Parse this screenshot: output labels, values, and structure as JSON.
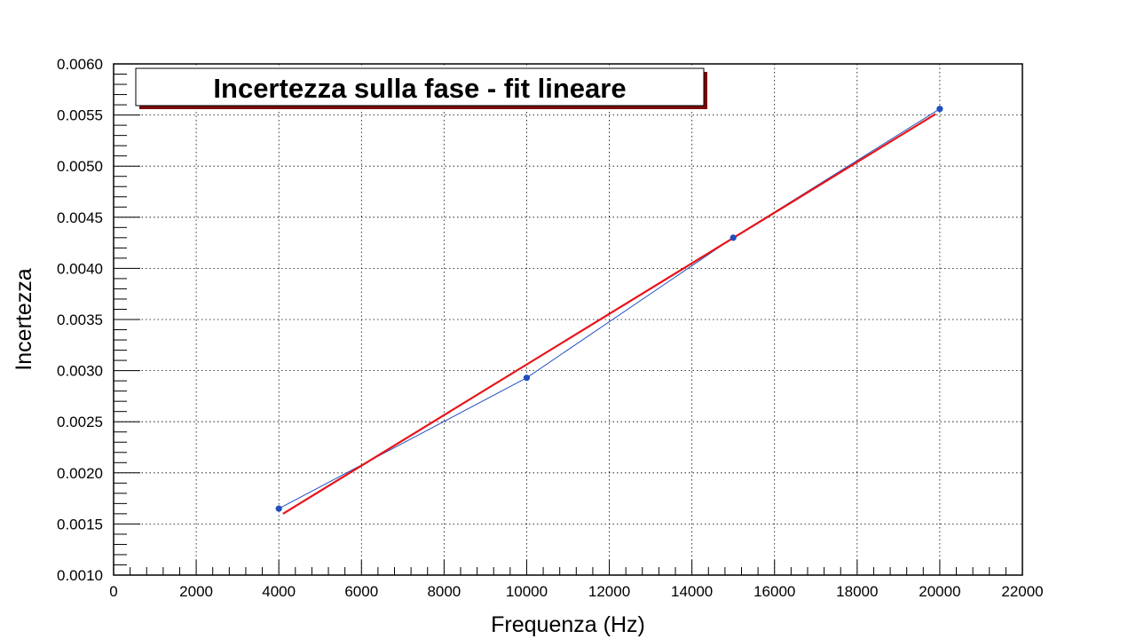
{
  "chart_data": {
    "type": "line",
    "title": "Incertezza sulla fase - fit lineare",
    "xlabel": "Frequenza (Hz)",
    "ylabel": "Incertezza",
    "xlim": [
      0,
      22000
    ],
    "ylim": [
      0.001,
      0.006
    ],
    "x_ticks": [
      "0",
      "2000",
      "4000",
      "6000",
      "8000",
      "10000",
      "12000",
      "14000",
      "16000",
      "18000",
      "20000",
      "22000"
    ],
    "y_ticks": [
      "0.0010",
      "0.0015",
      "0.0020",
      "0.0025",
      "0.0030",
      "0.0035",
      "0.0040",
      "0.0045",
      "0.0050",
      "0.0055",
      "0.0060"
    ],
    "grid": true,
    "series": [
      {
        "kind": "data",
        "color": "#1f4fbf",
        "x": [
          4000,
          10000,
          15000,
          20000
        ],
        "y": [
          0.00165,
          0.00293,
          0.0043,
          0.00556
        ]
      },
      {
        "kind": "fit",
        "color": "#e8141a",
        "x": [
          4100,
          19900
        ],
        "y": [
          0.0016,
          0.00551
        ]
      }
    ]
  }
}
